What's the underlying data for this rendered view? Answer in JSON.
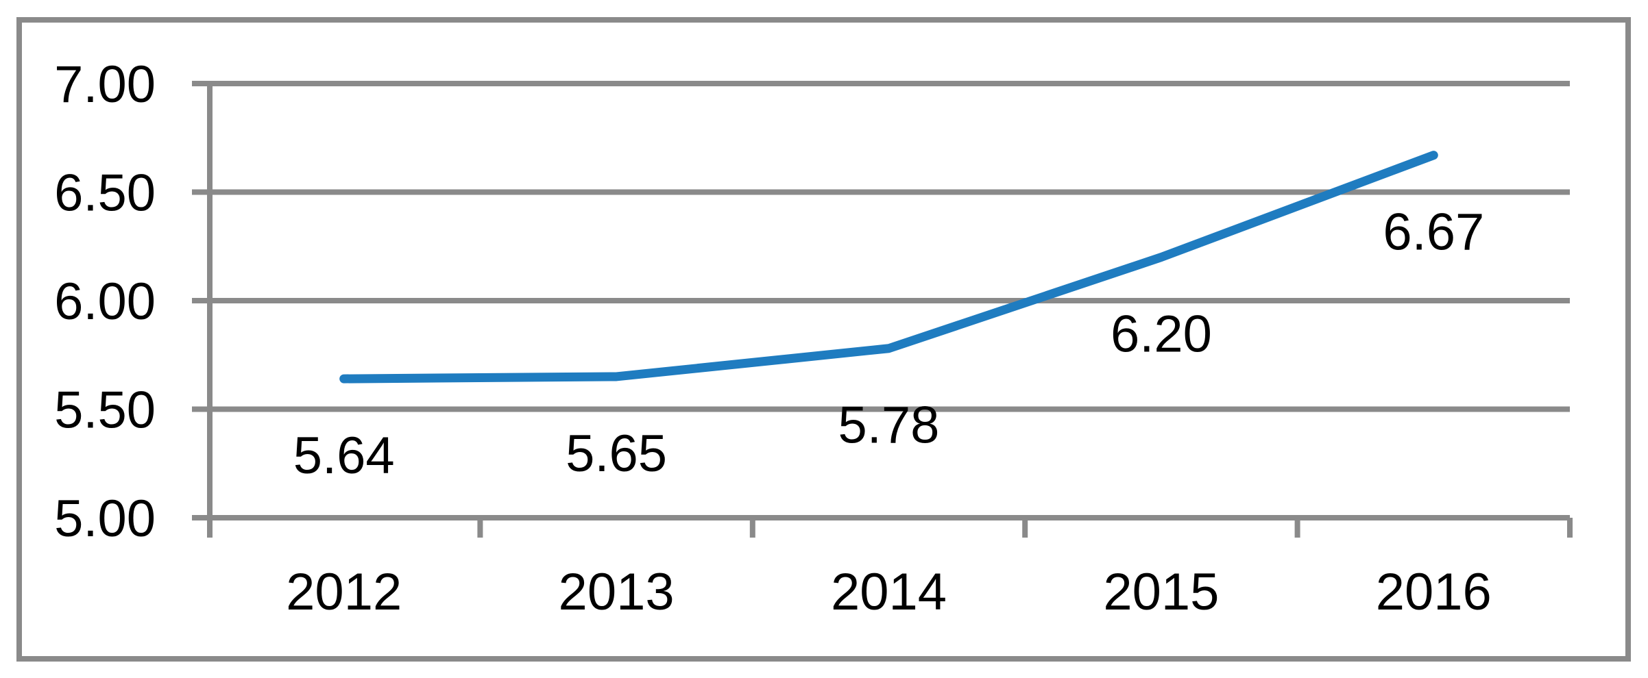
{
  "chart_data": {
    "type": "line",
    "title": "",
    "categories": [
      "2012",
      "2013",
      "2014",
      "2015",
      "2016"
    ],
    "series": [
      {
        "name": "",
        "values": [
          5.64,
          5.65,
          5.78,
          6.2,
          6.67
        ],
        "data_labels": [
          "5.64",
          "5.65",
          "5.78",
          "6.20",
          "6.67"
        ],
        "data_label_position": "below"
      }
    ],
    "xlabel": "",
    "ylabel": "",
    "ylim": [
      5.0,
      7.0
    ],
    "y_tick_step": 0.5,
    "y_ticks": [
      {
        "value": 5.0,
        "label": "5.00"
      },
      {
        "value": 5.5,
        "label": "5.50"
      },
      {
        "value": 6.0,
        "label": "6.00"
      },
      {
        "value": 6.5,
        "label": "6.50"
      },
      {
        "value": 7.0,
        "label": "7.00"
      }
    ],
    "grid": true,
    "legend": "none",
    "colors": {
      "line": "#1F7CC0",
      "axis_and_grid": "#8A8A8A",
      "frame_border": "#8A8A8A",
      "text": "#000000",
      "background": "#FFFFFF"
    }
  }
}
